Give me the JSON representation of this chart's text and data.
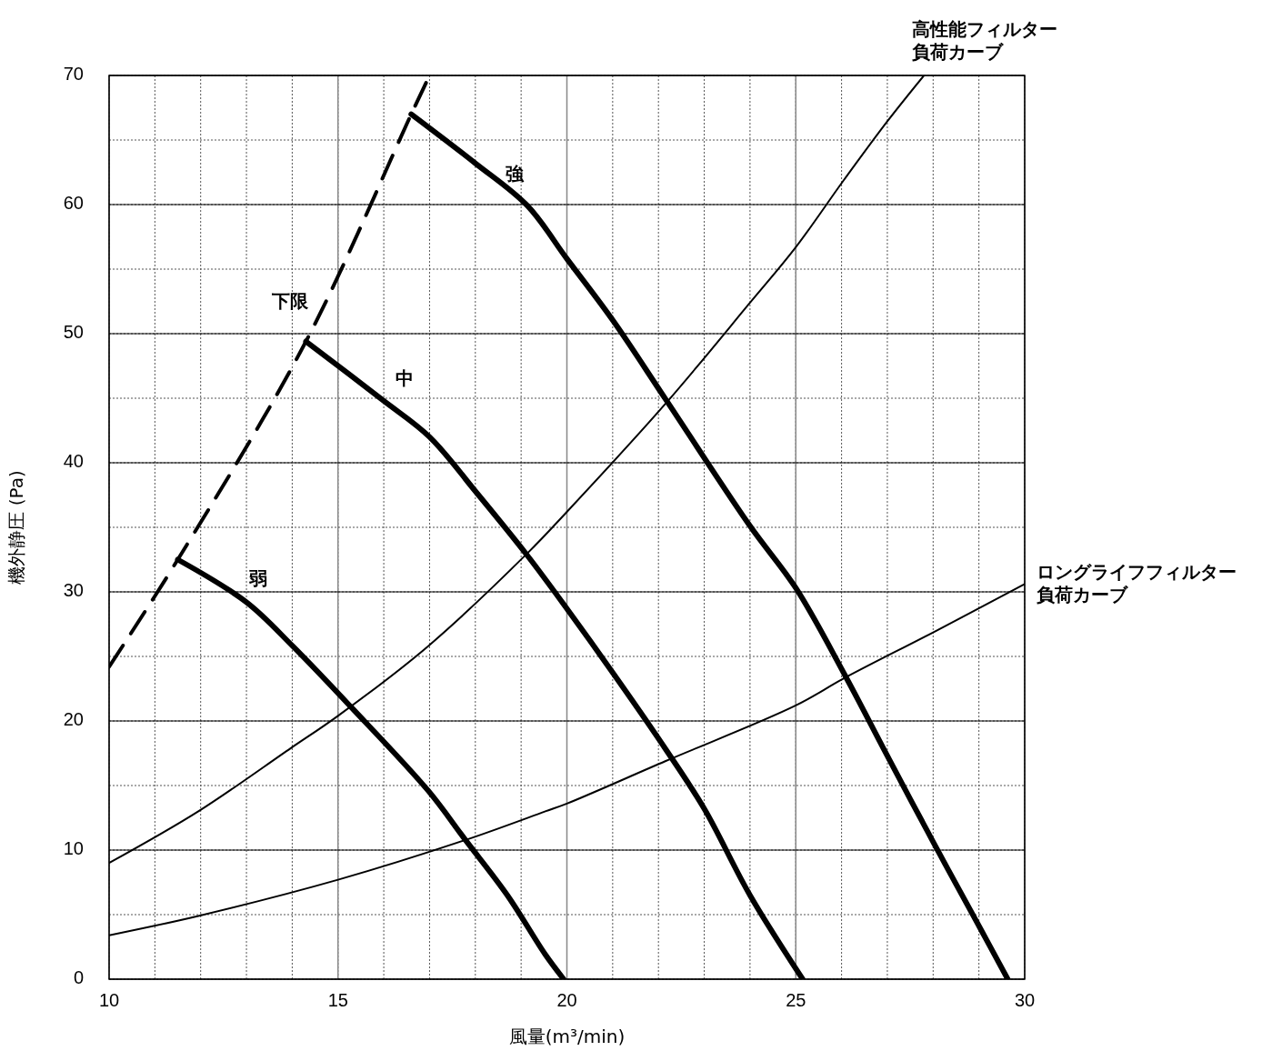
{
  "chart_data": {
    "type": "line",
    "xlabel": "風量(m³/min)",
    "ylabel": "機外静圧 (Pa)",
    "xlim": [
      10,
      30
    ],
    "ylim": [
      0,
      70
    ],
    "xticks": [
      10,
      15,
      20,
      25,
      30
    ],
    "yticks": [
      0,
      10,
      20,
      30,
      40,
      50,
      60,
      70
    ],
    "grid": true,
    "marker": "none",
    "series": [
      {
        "name": "強",
        "color": "#000000",
        "x": [
          16.6,
          18.0,
          19.14,
          20,
          21.01,
          22.16,
          24.0,
          25.0,
          26.05,
          27.0,
          28.02,
          29.02,
          29.63
        ],
        "values": [
          67,
          63.2,
          59.9,
          55.8,
          51.0,
          44.9,
          35.1,
          30.3,
          23.7,
          17.3,
          10.5,
          4.0,
          0
        ]
      },
      {
        "name": "中",
        "color": "#000000",
        "x": [
          14.3,
          15.96,
          17,
          18,
          19.14,
          20,
          21.01,
          22.16,
          23,
          24.0,
          25.15
        ],
        "values": [
          49.4,
          44.9,
          42,
          37.8,
          32.8,
          28.7,
          23.7,
          17.8,
          13.2,
          6.5,
          0
        ]
      },
      {
        "name": "弱",
        "color": "#000000",
        "x": [
          11.5,
          13.0,
          14.01,
          15.28,
          16.97,
          17.78,
          18.7,
          19.53,
          19.93
        ],
        "values": [
          32.5,
          29.2,
          25.8,
          21.1,
          14.6,
          10.8,
          6.5,
          1.9,
          0
        ]
      },
      {
        "name": "下限",
        "color": "#000000",
        "line_style": "dashed",
        "x": [
          10,
          11.5,
          14.3,
          16.6,
          17
        ],
        "values": [
          24.2,
          32.5,
          49.4,
          67,
          70
        ]
      },
      {
        "name": "高性能フィルター負荷カーブ",
        "color": "#000000",
        "x": [
          10,
          11.95,
          13.97,
          15,
          16.97,
          19.14,
          20,
          22.16,
          24,
          25,
          26.05,
          27,
          27.8
        ],
        "values": [
          9.0,
          13.0,
          17.9,
          20.4,
          25.8,
          33.0,
          36.2,
          44.6,
          52.4,
          56.7,
          61.9,
          66.45,
          70
        ]
      },
      {
        "name": "ロングライフフィルター負荷カーブ",
        "color": "#000000",
        "x": [
          10,
          11.95,
          15,
          17.8,
          19.53,
          20,
          22.16,
          25,
          26.05,
          28.02,
          30
        ],
        "values": [
          3.4,
          4.9,
          7.7,
          10.8,
          13.0,
          13.6,
          16.9,
          21.2,
          23.3,
          26.9,
          30.6
        ]
      }
    ]
  }
}
